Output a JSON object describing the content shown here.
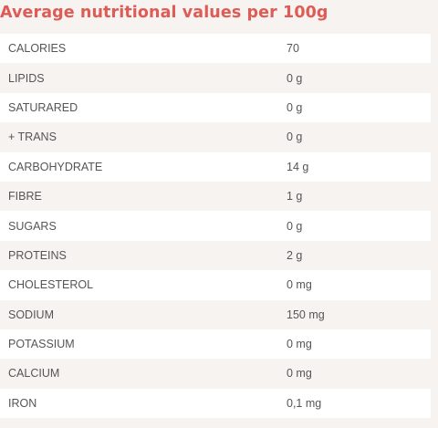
{
  "title": "Average nutritional values per 100g",
  "rows": [
    {
      "label": "CALORIES",
      "value": "70"
    },
    {
      "label": "LIPIDS",
      "value": "0 g"
    },
    {
      "label": "SATURARED",
      "value": "0 g"
    },
    {
      "label": "+ TRANS",
      "value": "0 g"
    },
    {
      "label": "CARBOHYDRATE",
      "value": "14 g"
    },
    {
      "label": "FIBRE",
      "value": "1 g"
    },
    {
      "label": "SUGARS",
      "value": "0 g"
    },
    {
      "label": "PROTEINS",
      "value": "2 g"
    },
    {
      "label": "CHOLESTEROL",
      "value": "0 mg"
    },
    {
      "label": "SODIUM",
      "value": "150 mg"
    },
    {
      "label": "POTASSIUM",
      "value": "0 mg"
    },
    {
      "label": "CALCIUM",
      "value": "0 mg"
    },
    {
      "label": "IRON",
      "value": "0,1 mg"
    }
  ]
}
